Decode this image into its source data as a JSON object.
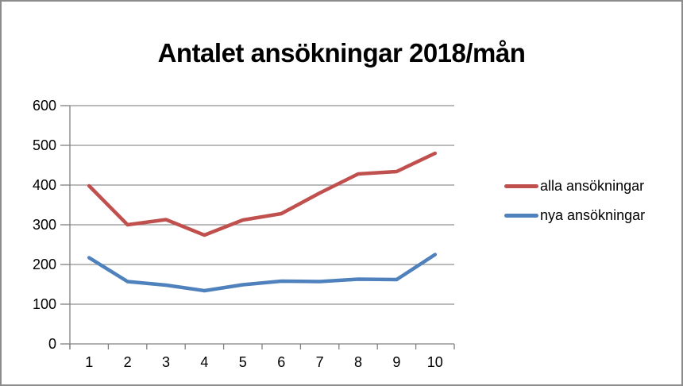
{
  "window": {
    "background_color": "#ffffff",
    "border_color": "#8c8c8c"
  },
  "chart_data": {
    "type": "line",
    "title": "Antalet ansökningar 2018/mån",
    "categories": [
      "1",
      "2",
      "3",
      "4",
      "5",
      "6",
      "7",
      "8",
      "9",
      "10"
    ],
    "series": [
      {
        "name": "alla ansökningar",
        "color": "#C0504D",
        "values": [
          398,
          300,
          313,
          274,
          312,
          328,
          380,
          428,
          434,
          480
        ]
      },
      {
        "name": "nya ansökningar",
        "color": "#4F81BD",
        "values": [
          217,
          157,
          148,
          134,
          149,
          158,
          157,
          163,
          162,
          225
        ]
      }
    ],
    "xlabel": "",
    "ylabel": "",
    "ylim": [
      0,
      600
    ],
    "ytick_step": 100,
    "ytick_labels": [
      "0",
      "100",
      "200",
      "300",
      "400",
      "500",
      "600"
    ],
    "grid": true,
    "legend_position": "right"
  },
  "styles": {
    "gridline_color": "#919191",
    "axis_color": "#808080",
    "text_color": "#000000",
    "axis_font_size": 18
  }
}
